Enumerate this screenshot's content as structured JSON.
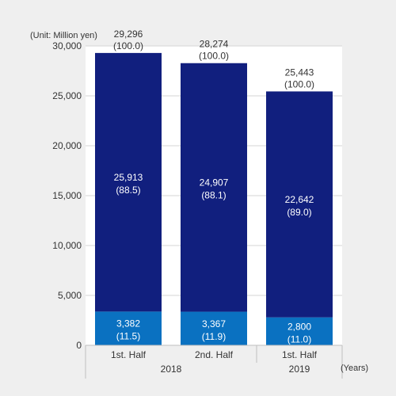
{
  "unit_label": "(Unit: Million yen)",
  "x_unit_label": "(Years)",
  "chart_data": {
    "type": "bar",
    "stacked": true,
    "categories": [
      "1st. Half",
      "2nd. Half",
      "1st. Half"
    ],
    "year_groups": [
      {
        "label": "2018",
        "categories": [
          0,
          1
        ]
      },
      {
        "label": "2019",
        "categories": [
          2
        ]
      }
    ],
    "series": [
      {
        "color": "#0a71c1",
        "values": [
          3382,
          3367,
          2800
        ],
        "value_labels": [
          "3,382",
          "3,367",
          "2,800"
        ],
        "share_labels": [
          "(11.5)",
          "(11.9)",
          "(11.0)"
        ]
      },
      {
        "color": "#111f7e",
        "values": [
          25913,
          24907,
          22642
        ],
        "value_labels": [
          "25,913",
          "24,907",
          "22,642"
        ],
        "share_labels": [
          "(88.5)",
          "(88.1)",
          "(89.0)"
        ]
      }
    ],
    "totals": {
      "values": [
        29296,
        28274,
        25443
      ],
      "value_labels": [
        "29,296",
        "28,274",
        "25,443"
      ],
      "share_labels": [
        "(100.0)",
        "(100.0)",
        "(100.0)"
      ]
    },
    "ylim": [
      0,
      30000
    ],
    "yticks": [
      0,
      5000,
      10000,
      15000,
      20000,
      25000,
      30000
    ],
    "ytick_labels": [
      "0",
      "5,000",
      "10,000",
      "15,000",
      "20,000",
      "25,000",
      "30,000"
    ],
    "grid": true,
    "legend": "none"
  }
}
